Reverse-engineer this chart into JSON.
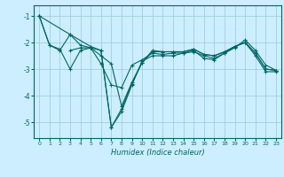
{
  "title": "",
  "xlabel": "Humidex (Indice chaleur)",
  "background_color": "#cceeff",
  "line_color": "#006666",
  "grid_color": "#99cccc",
  "xlim": [
    -0.5,
    23.5
  ],
  "ylim": [
    -5.6,
    -0.6
  ],
  "yticks": [
    -5,
    -4,
    -3,
    -2,
    -1
  ],
  "xticks": [
    0,
    1,
    2,
    3,
    4,
    5,
    6,
    7,
    8,
    9,
    10,
    11,
    12,
    13,
    14,
    15,
    16,
    17,
    18,
    19,
    20,
    21,
    22,
    23
  ],
  "series": [
    {
      "x": [
        0,
        1,
        2,
        3,
        4,
        5,
        6,
        7,
        8,
        9,
        10,
        11,
        12,
        13,
        14,
        15,
        16,
        17,
        18,
        19,
        20,
        21,
        22,
        23
      ],
      "y": [
        -1.0,
        -2.1,
        -2.3,
        -1.7,
        -2.1,
        -2.2,
        -2.3,
        -5.2,
        -4.6,
        -3.6,
        -2.7,
        -2.5,
        -2.5,
        -2.5,
        -2.4,
        -2.35,
        -2.5,
        -2.6,
        -2.4,
        -2.15,
        -2.0,
        -2.5,
        -3.1,
        -3.1
      ]
    },
    {
      "x": [
        0,
        1,
        2,
        3,
        4,
        5,
        6,
        7,
        8,
        9,
        10,
        11,
        12,
        13,
        14,
        15,
        16,
        17,
        18,
        19,
        20,
        21,
        22,
        23
      ],
      "y": [
        -1.0,
        -2.1,
        -2.25,
        -3.0,
        -2.3,
        -2.2,
        -2.8,
        -3.6,
        -3.7,
        -2.85,
        -2.65,
        -2.4,
        -2.45,
        -2.4,
        -2.4,
        -2.3,
        -2.6,
        -2.65,
        -2.4,
        -2.2,
        -1.9,
        -2.3,
        -2.85,
        -3.05
      ]
    },
    {
      "x": [
        0,
        3,
        5,
        6,
        7,
        8,
        9,
        10,
        11,
        12,
        13,
        14,
        15,
        16,
        17,
        18,
        19,
        20,
        21,
        22,
        23
      ],
      "y": [
        -1.0,
        -1.7,
        -2.15,
        -2.3,
        -5.2,
        -4.5,
        -3.55,
        -2.75,
        -2.3,
        -2.35,
        -2.35,
        -2.35,
        -2.25,
        -2.45,
        -2.5,
        -2.35,
        -2.15,
        -2.0,
        -2.4,
        -3.0,
        -3.05
      ]
    },
    {
      "x": [
        3,
        4,
        5,
        6,
        7,
        8,
        9,
        10,
        11,
        12,
        13,
        14,
        15,
        16,
        17,
        18,
        19,
        20,
        21,
        22,
        23
      ],
      "y": [
        -2.3,
        -2.2,
        -2.2,
        -2.5,
        -2.8,
        -4.4,
        -3.5,
        -2.75,
        -2.35,
        -2.35,
        -2.35,
        -2.35,
        -2.25,
        -2.45,
        -2.5,
        -2.35,
        -2.15,
        -2.0,
        -2.4,
        -3.0,
        -3.05
      ]
    }
  ]
}
